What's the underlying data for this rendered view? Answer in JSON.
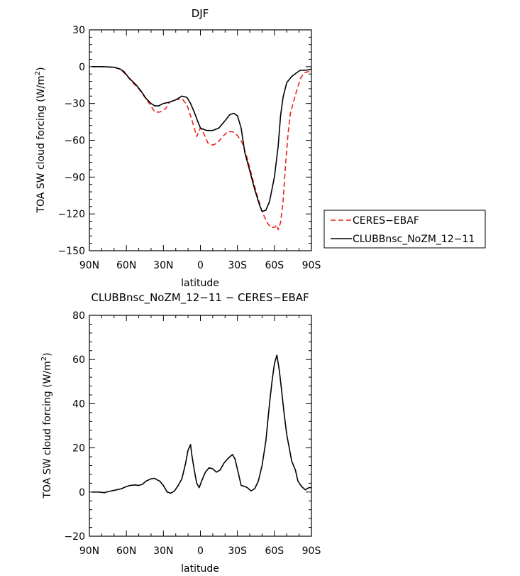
{
  "chart_data": [
    {
      "type": "line",
      "title": "DJF",
      "xlabel": "latitude",
      "ylabel": "TOA SW cloud forcing (W/m²)",
      "ylabel_main": "TOA SW cloud forcing (W/m",
      "ylabel_sup": "2",
      "ylabel_close": ")",
      "xlim": [
        90,
        -90
      ],
      "ylim": [
        -150,
        30
      ],
      "x_ticks": [
        90,
        60,
        30,
        0,
        -30,
        -60,
        -90
      ],
      "x_tick_labels": [
        "90N",
        "60N",
        "30N",
        "0",
        "30S",
        "60S",
        "90S"
      ],
      "y_ticks": [
        30,
        0,
        -30,
        -60,
        -90,
        -120,
        -150
      ],
      "y_tick_labels": [
        "30",
        "0",
        "−30",
        "−60",
        "−90",
        "−120",
        "−150"
      ],
      "legend_position": "right",
      "series": [
        {
          "name": "CERES−EBAF",
          "color": "#e8231c",
          "dash": "dashed",
          "points": [
            [
              88,
              0
            ],
            [
              80,
              0
            ],
            [
              70,
              -0.5
            ],
            [
              65,
              -2
            ],
            [
              60,
              -7
            ],
            [
              55,
              -13
            ],
            [
              50,
              -18
            ],
            [
              45,
              -25
            ],
            [
              40,
              -32
            ],
            [
              37,
              -37
            ],
            [
              33,
              -37
            ],
            [
              28,
              -34
            ],
            [
              25,
              -29
            ],
            [
              20,
              -27
            ],
            [
              15,
              -26
            ],
            [
              11,
              -31
            ],
            [
              8,
              -40
            ],
            [
              5,
              -50
            ],
            [
              3,
              -57
            ],
            [
              1,
              -52
            ],
            [
              0,
              -50
            ],
            [
              -3,
              -55
            ],
            [
              -6,
              -62
            ],
            [
              -10,
              -64
            ],
            [
              -14,
              -62
            ],
            [
              -18,
              -57
            ],
            [
              -22,
              -53
            ],
            [
              -26,
              -53
            ],
            [
              -30,
              -56
            ],
            [
              -34,
              -62
            ],
            [
              -38,
              -75
            ],
            [
              -42,
              -90
            ],
            [
              -46,
              -105
            ],
            [
              -50,
              -118
            ],
            [
              -54,
              -127
            ],
            [
              -57,
              -131
            ],
            [
              -60,
              -131
            ],
            [
              -62,
              -129
            ],
            [
              -63,
              -133
            ],
            [
              -65,
              -127
            ],
            [
              -67,
              -110
            ],
            [
              -69,
              -80
            ],
            [
              -71,
              -55
            ],
            [
              -73,
              -38
            ],
            [
              -77,
              -23
            ],
            [
              -81,
              -10
            ],
            [
              -84,
              -5
            ],
            [
              -88,
              -4
            ],
            [
              -90,
              -3
            ]
          ]
        },
        {
          "name": "CLUBBnsc_NoZM_12−11",
          "color": "#000000",
          "dash": "solid",
          "points": [
            [
              88,
              0
            ],
            [
              80,
              0
            ],
            [
              70,
              -0.5
            ],
            [
              65,
              -2
            ],
            [
              62,
              -4
            ],
            [
              58,
              -9
            ],
            [
              52,
              -15
            ],
            [
              48,
              -20
            ],
            [
              44,
              -26
            ],
            [
              40,
              -30
            ],
            [
              37,
              -32
            ],
            [
              34,
              -32
            ],
            [
              30,
              -30
            ],
            [
              25,
              -29
            ],
            [
              20,
              -27
            ],
            [
              15,
              -24
            ],
            [
              11,
              -25
            ],
            [
              8,
              -30
            ],
            [
              5,
              -37
            ],
            [
              2,
              -45
            ],
            [
              0,
              -50
            ],
            [
              -5,
              -52
            ],
            [
              -10,
              -52
            ],
            [
              -15,
              -50
            ],
            [
              -20,
              -44
            ],
            [
              -24,
              -39
            ],
            [
              -27,
              -38
            ],
            [
              -30,
              -40
            ],
            [
              -33,
              -50
            ],
            [
              -36,
              -70
            ],
            [
              -40,
              -85
            ],
            [
              -44,
              -100
            ],
            [
              -48,
              -113
            ],
            [
              -50,
              -118
            ],
            [
              -53,
              -117
            ],
            [
              -56,
              -110
            ],
            [
              -60,
              -90
            ],
            [
              -63,
              -65
            ],
            [
              -65,
              -40
            ],
            [
              -67,
              -25
            ],
            [
              -70,
              -13
            ],
            [
              -74,
              -8
            ],
            [
              -78,
              -5
            ],
            [
              -81,
              -3
            ],
            [
              -85,
              -3
            ],
            [
              -90,
              -2
            ]
          ]
        }
      ]
    },
    {
      "type": "line",
      "title": "CLUBBnsc_NoZM_12−11 − CERES−EBAF",
      "xlabel": "latitude",
      "ylabel": "TOA SW cloud forcing (W/m²)",
      "ylabel_main": "TOA SW cloud forcing (W/m",
      "ylabel_sup": "2",
      "ylabel_close": ")",
      "xlim": [
        90,
        -90
      ],
      "ylim": [
        -20,
        80
      ],
      "x_ticks": [
        90,
        60,
        30,
        0,
        -30,
        -60,
        -90
      ],
      "x_tick_labels": [
        "90N",
        "60N",
        "30N",
        "0",
        "30S",
        "60S",
        "90S"
      ],
      "y_ticks": [
        80,
        60,
        40,
        20,
        0,
        -20
      ],
      "y_tick_labels": [
        "80",
        "60",
        "40",
        "20",
        "0",
        "−20"
      ],
      "series": [
        {
          "color": "#000000",
          "dash": "solid",
          "points": [
            [
              88,
              0
            ],
            [
              82,
              0
            ],
            [
              78,
              -0.3
            ],
            [
              74,
              0.3
            ],
            [
              68,
              1
            ],
            [
              64,
              1.5
            ],
            [
              60,
              2.5
            ],
            [
              57,
              3
            ],
            [
              53,
              3.2
            ],
            [
              50,
              3
            ],
            [
              47,
              3.5
            ],
            [
              44,
              5
            ],
            [
              40,
              6
            ],
            [
              37,
              6.2
            ],
            [
              35,
              5.5
            ],
            [
              33,
              5
            ],
            [
              30,
              3
            ],
            [
              27,
              0
            ],
            [
              24,
              -0.5
            ],
            [
              21,
              0.5
            ],
            [
              18,
              3
            ],
            [
              15,
              6
            ],
            [
              12,
              13
            ],
            [
              10,
              19
            ],
            [
              8,
              21.5
            ],
            [
              7,
              17
            ],
            [
              5,
              10
            ],
            [
              3,
              4
            ],
            [
              1,
              2
            ],
            [
              -1,
              5
            ],
            [
              -4,
              9
            ],
            [
              -7,
              11
            ],
            [
              -10,
              10.5
            ],
            [
              -13,
              9
            ],
            [
              -16,
              10
            ],
            [
              -19,
              13
            ],
            [
              -22,
              15
            ],
            [
              -26,
              17
            ],
            [
              -28,
              15
            ],
            [
              -31,
              8
            ],
            [
              -33,
              3
            ],
            [
              -36,
              2.5
            ],
            [
              -38,
              2
            ],
            [
              -41,
              0.5
            ],
            [
              -44,
              1.5
            ],
            [
              -47,
              5
            ],
            [
              -50,
              12
            ],
            [
              -53,
              23
            ],
            [
              -56,
              40
            ],
            [
              -58,
              50
            ],
            [
              -60,
              58
            ],
            [
              -62,
              62
            ],
            [
              -64,
              55
            ],
            [
              -66,
              45
            ],
            [
              -68,
              35
            ],
            [
              -70,
              26
            ],
            [
              -72,
              20
            ],
            [
              -74,
              14
            ],
            [
              -77,
              10
            ],
            [
              -79,
              5
            ],
            [
              -82,
              2.5
            ],
            [
              -85,
              1
            ],
            [
              -88,
              2
            ],
            [
              -90,
              2
            ]
          ]
        }
      ]
    }
  ]
}
